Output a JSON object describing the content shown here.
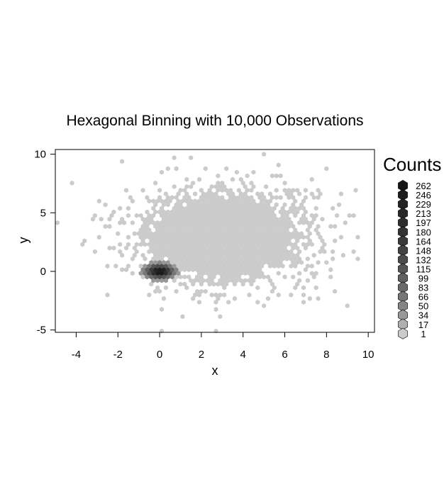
{
  "chart_data": {
    "type": "hexbin",
    "title": "Hexagonal Binning with 10,000 Observations",
    "xlabel": "x",
    "ylabel": "y",
    "xlim": [
      -5,
      10.3
    ],
    "ylim": [
      -5.2,
      10.4
    ],
    "x_ticks": [
      "-4",
      "-2",
      "0",
      "2",
      "4",
      "6",
      "8",
      "10"
    ],
    "y_ticks": [
      "-5",
      "0",
      "5",
      "10"
    ],
    "n_observations": 10000,
    "bins": [
      {
        "x": 0.0,
        "y": 0.0,
        "count": 262
      },
      {
        "x": 3.0,
        "y": 3.0,
        "count": 1
      }
    ],
    "legend": {
      "title": "Counts",
      "position": "right",
      "levels": [
        262,
        246,
        229,
        213,
        197,
        180,
        164,
        148,
        132,
        115,
        99,
        83,
        66,
        50,
        34,
        17,
        1
      ],
      "colors": [
        "#161616",
        "#1c1c1c",
        "#222222",
        "#282828",
        "#2e2e2e",
        "#343434",
        "#3b3b3b",
        "#434343",
        "#4c4c4c",
        "#555555",
        "#5f5f5f",
        "#6a6a6a",
        "#767676",
        "#858585",
        "#989898",
        "#b0b0b0",
        "#cbcbcb"
      ]
    }
  }
}
